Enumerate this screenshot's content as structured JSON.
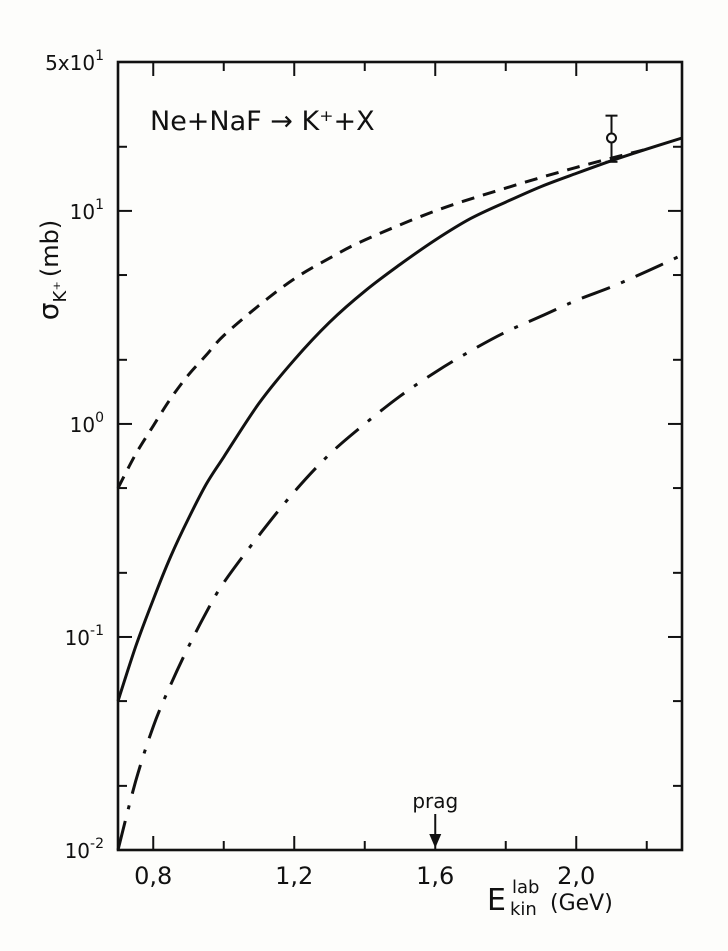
{
  "chart_data": {
    "type": "line",
    "annotation": "Ne+NaF → K⁺+X",
    "ylabel": {
      "symbol": "σ",
      "sub": "K⁺",
      "unit": "(mb)"
    },
    "xlabel": {
      "symbol": "E",
      "sup": "lab",
      "sub": "kin",
      "unit": "(GeV)"
    },
    "xlim": [
      0.7,
      2.3
    ],
    "ylim": [
      0.01,
      50
    ],
    "yscale": "log",
    "xticks": [
      {
        "value": 0.8,
        "label": "0,8"
      },
      {
        "value": 1.2,
        "label": "1,2"
      },
      {
        "value": 1.6,
        "label": "1,6"
      },
      {
        "value": 2.0,
        "label": "2,0"
      }
    ],
    "yticks": [
      {
        "value": 0.01,
        "base": "10",
        "exp": "-2"
      },
      {
        "value": 0.1,
        "base": "10",
        "exp": "-1"
      },
      {
        "value": 1,
        "base": "10",
        "exp": "0"
      },
      {
        "value": 10,
        "base": "10",
        "exp": "1"
      },
      {
        "value": 50,
        "base": "5x10",
        "exp": "1"
      }
    ],
    "marker": {
      "x": 1.6,
      "label": "prag"
    },
    "series": [
      {
        "style": "solid",
        "x": [
          0.7,
          0.75,
          0.8,
          0.85,
          0.9,
          0.95,
          1.0,
          1.1,
          1.2,
          1.3,
          1.4,
          1.5,
          1.6,
          1.7,
          1.8,
          1.9,
          2.0,
          2.1,
          2.2,
          2.3
        ],
        "y": [
          0.05,
          0.09,
          0.15,
          0.24,
          0.36,
          0.52,
          0.7,
          1.25,
          2.0,
          3.0,
          4.2,
          5.6,
          7.3,
          9.2,
          11.0,
          13.0,
          15.0,
          17.2,
          19.5,
          22.0
        ]
      },
      {
        "style": "dashed",
        "x": [
          0.7,
          0.75,
          0.8,
          0.85,
          0.9,
          0.95,
          1.0,
          1.1,
          1.2,
          1.3,
          1.4,
          1.6,
          1.8,
          2.0,
          2.2
        ],
        "y": [
          0.5,
          0.72,
          0.98,
          1.32,
          1.7,
          2.1,
          2.6,
          3.6,
          4.8,
          6.0,
          7.3,
          10.0,
          12.8,
          16.0,
          19.5
        ]
      },
      {
        "style": "dash-dot",
        "x": [
          0.7,
          0.75,
          0.8,
          0.85,
          0.9,
          0.95,
          1.0,
          1.1,
          1.2,
          1.3,
          1.4,
          1.5,
          1.6,
          1.7,
          1.8,
          1.9,
          2.0,
          2.1,
          2.2,
          2.3
        ],
        "y": [
          0.01,
          0.021,
          0.038,
          0.06,
          0.09,
          0.13,
          0.18,
          0.3,
          0.48,
          0.72,
          1.0,
          1.35,
          1.75,
          2.2,
          2.7,
          3.2,
          3.8,
          4.4,
          5.2,
          6.2
        ]
      }
    ],
    "data_points": [
      {
        "x": 2.1,
        "y": 22.0,
        "yerr_low": 17.0,
        "yerr_high": 28.0
      }
    ]
  }
}
